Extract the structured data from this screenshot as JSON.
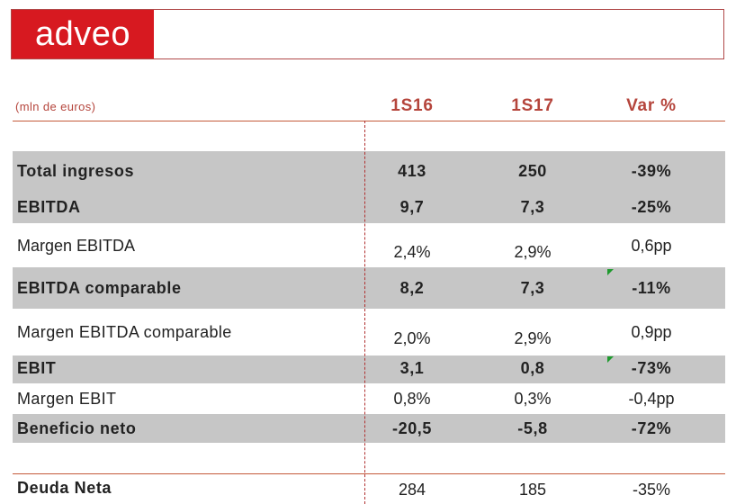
{
  "logo": {
    "text": "adveo"
  },
  "header": {
    "units_label": "(mln de euros)",
    "col1": "1S16",
    "col2": "1S17",
    "col3": "Var %"
  },
  "rows": [
    {
      "label": "Total ingresos",
      "v1": "413",
      "v2": "250",
      "var": "-39%"
    },
    {
      "label": "EBITDA",
      "v1": "9,7",
      "v2": "7,3",
      "var": "-25%"
    },
    {
      "label": "Margen EBITDA",
      "v1": "2,4%",
      "v2": "2,9%",
      "var": "0,6pp"
    },
    {
      "label": "EBITDA comparable",
      "v1": "8,2",
      "v2": "7,3",
      "var": "-11%"
    },
    {
      "label": "Margen EBITDA comparable",
      "v1": "2,0%",
      "v2": "2,9%",
      "var": "0,9pp"
    },
    {
      "label": "EBIT",
      "v1": "3,1",
      "v2": "0,8",
      "var": "-73%"
    },
    {
      "label": "Margen EBIT",
      "v1": "0,8%",
      "v2": "0,3%",
      "var": "-0,4pp"
    },
    {
      "label": "Beneficio neto",
      "v1": "-20,5",
      "v2": "-5,8",
      "var": "-72%"
    },
    {
      "label": "Deuda Neta",
      "v1": "284",
      "v2": "185",
      "var": "-35%"
    }
  ],
  "colors": {
    "brand_red": "#d71920",
    "header_text": "#b5453c",
    "row_gray": "#c6c6c6",
    "comment_marker": "#1f9a2e"
  }
}
